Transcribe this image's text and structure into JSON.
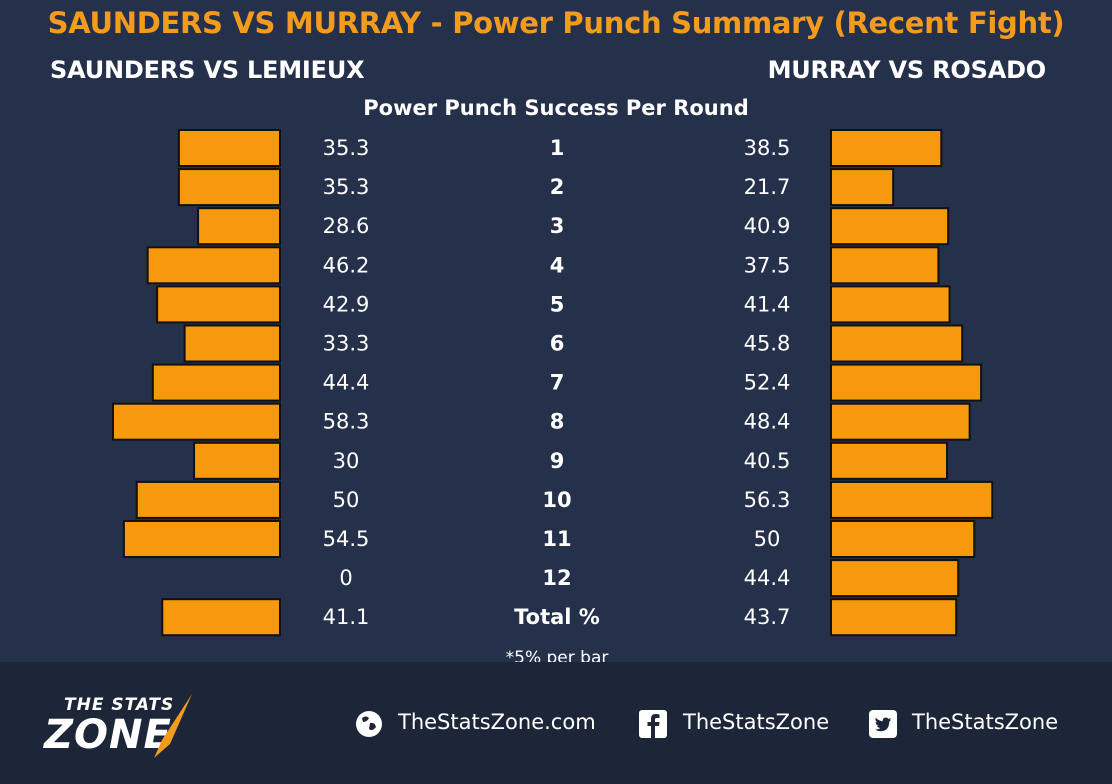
{
  "header": {
    "title": "SAUNDERS VS MURRAY - Power Punch Summary (Recent Fight)",
    "left_fight": "SAUNDERS VS LEMIEUX",
    "right_fight": "MURRAY VS ROSADO"
  },
  "chart_data": {
    "type": "bar",
    "title": "Power Punch Success Per Round",
    "categories": [
      "1",
      "2",
      "3",
      "4",
      "5",
      "6",
      "7",
      "8",
      "9",
      "10",
      "11",
      "12",
      "Total %"
    ],
    "series": [
      {
        "name": "SAUNDERS VS LEMIEUX",
        "values": [
          35.3,
          35.3,
          28.6,
          46.2,
          42.9,
          33.3,
          44.4,
          58.3,
          30,
          50,
          54.5,
          0,
          41.1
        ]
      },
      {
        "name": "MURRAY VS ROSADO",
        "values": [
          38.5,
          21.7,
          40.9,
          37.5,
          41.4,
          45.8,
          52.4,
          48.4,
          40.5,
          56.3,
          50,
          44.4,
          43.7
        ]
      }
    ],
    "left_labels": [
      "35.3",
      "35.3",
      "28.6",
      "46.2",
      "42.9",
      "33.3",
      "44.4",
      "58.3",
      "30",
      "50",
      "54.5",
      "0",
      "41.1"
    ],
    "right_labels": [
      "38.5",
      "21.7",
      "40.9",
      "37.5",
      "41.4",
      "45.8",
      "52.4",
      "48.4",
      "40.5",
      "56.3",
      "50",
      "44.4",
      "43.7"
    ],
    "note": "*5% per bar",
    "bar_color": "#f7990d"
  },
  "footer": {
    "logo_line1": "THE STATS",
    "logo_line2": "ZONE",
    "website": "TheStatsZone.com",
    "facebook": "TheStatsZone",
    "twitter": "TheStatsZone"
  }
}
